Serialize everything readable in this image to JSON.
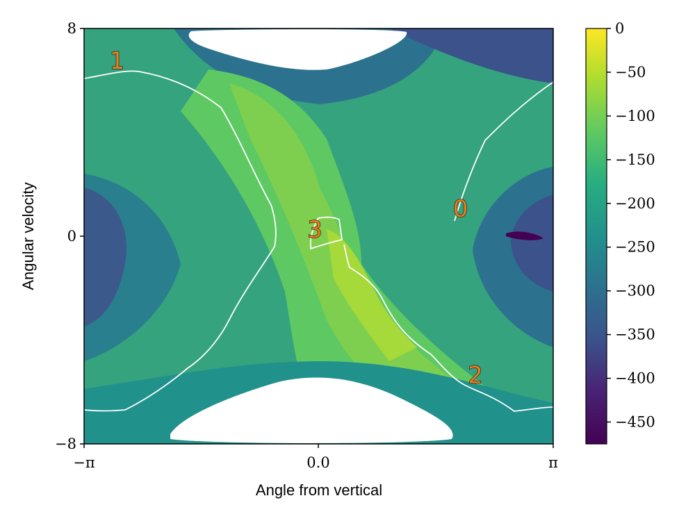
{
  "chart_data": {
    "type": "heatmap",
    "xlabel": "Angle from vertical",
    "ylabel": "Angular velocity",
    "x_ticks": [
      "−π",
      "0.0",
      "π"
    ],
    "y_ticks": [
      "8",
      "0",
      "−8"
    ],
    "xlim": [
      -3.1416,
      3.1416
    ],
    "ylim": [
      -8,
      8
    ],
    "colormap": "viridis",
    "colorbar": {
      "range": [
        -475,
        0
      ],
      "ticks": [
        0,
        -50,
        -100,
        -150,
        -200,
        -250,
        -300,
        -350,
        -400,
        -450
      ],
      "tick_labels": [
        "0",
        "−50",
        "−100",
        "−150",
        "−200",
        "−250",
        "−300",
        "−350",
        "−400",
        "−450"
      ]
    },
    "region_labels": [
      {
        "text": "1",
        "x": -2.7,
        "y": 6.7
      },
      {
        "text": "0",
        "x": 1.9,
        "y": 1.0
      },
      {
        "text": "3",
        "x": -0.05,
        "y": 0.2
      },
      {
        "text": "2",
        "x": 2.1,
        "y": -5.4
      }
    ],
    "boundary_color": "#ffffff"
  }
}
